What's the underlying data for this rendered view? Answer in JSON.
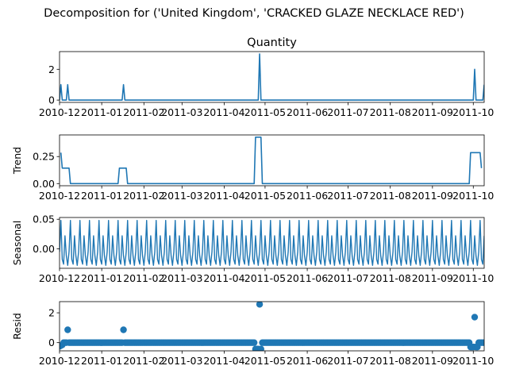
{
  "figure": {
    "suptitle": "Decomposition for ('United Kingdom', 'CRACKED GLAZE NECKLACE RED')"
  },
  "colors": {
    "series": "#1f77b4",
    "axis": "#000000",
    "background": "#ffffff"
  },
  "chart_data": [
    {
      "type": "line",
      "title": "Quantity",
      "ylabel": "",
      "xlim": [
        "2010-12-01",
        "2011-10-09"
      ],
      "ylim": [
        -0.15,
        3.15
      ],
      "yticks": [
        "0",
        "2"
      ],
      "ytick_values": [
        0,
        2
      ],
      "xticks": [
        "2010-12",
        "2011-01",
        "2011-02",
        "2011-03",
        "2011-04",
        "2011-05",
        "2011-06",
        "2011-07",
        "2011-08",
        "2011-09",
        "2011-10"
      ],
      "grid": false,
      "series": [
        {
          "points": [
            [
              "2010-12-01",
              0
            ],
            [
              "2010-12-02",
              1
            ],
            [
              "2010-12-03",
              0
            ],
            [
              "2010-12-06",
              0
            ],
            [
              "2010-12-07",
              1
            ],
            [
              "2010-12-08",
              0
            ],
            [
              "2011-01-16",
              0
            ],
            [
              "2011-01-17",
              1
            ],
            [
              "2011-01-18",
              0
            ],
            [
              "2011-04-26",
              0
            ],
            [
              "2011-04-27",
              3
            ],
            [
              "2011-04-28",
              0
            ],
            [
              "2011-10-01",
              0
            ],
            [
              "2011-10-02",
              2
            ],
            [
              "2011-10-03",
              0
            ],
            [
              "2011-10-08",
              0
            ],
            [
              "2011-10-09",
              1
            ]
          ]
        }
      ]
    },
    {
      "type": "line",
      "title": "",
      "ylabel": "Trend",
      "xlim": [
        "2010-12-01",
        "2011-10-09"
      ],
      "ylim": [
        -0.02,
        0.45
      ],
      "yticks": [
        "0.00",
        "0.25"
      ],
      "ytick_values": [
        0,
        0.25
      ],
      "xticks": [
        "2010-12",
        "2011-01",
        "2011-02",
        "2011-03",
        "2011-04",
        "2011-05",
        "2011-06",
        "2011-07",
        "2011-08",
        "2011-09",
        "2011-10"
      ],
      "grid": false,
      "series": [
        {
          "points": [
            [
              "2010-12-02",
              0.286
            ],
            [
              "2010-12-03",
              0.143
            ],
            [
              "2010-12-08",
              0.143
            ],
            [
              "2010-12-09",
              0
            ],
            [
              "2011-01-13",
              0
            ],
            [
              "2011-01-14",
              0.143
            ],
            [
              "2011-01-19",
              0.143
            ],
            [
              "2011-01-20",
              0
            ],
            [
              "2011-04-23",
              0
            ],
            [
              "2011-04-24",
              0.429
            ],
            [
              "2011-04-28",
              0.429
            ],
            [
              "2011-04-29",
              0
            ],
            [
              "2011-09-28",
              0
            ],
            [
              "2011-09-29",
              0.286
            ],
            [
              "2011-10-06",
              0.286
            ],
            [
              "2011-10-07",
              0.143
            ]
          ]
        }
      ]
    },
    {
      "type": "line",
      "title": "",
      "ylabel": "Seasonal",
      "xlim": [
        "2010-12-01",
        "2011-10-09"
      ],
      "ylim": [
        -0.033,
        0.053
      ],
      "yticks": [
        "0.00",
        "0.05"
      ],
      "ytick_values": [
        0,
        0.05
      ],
      "xticks": [
        "2010-12",
        "2011-01",
        "2011-02",
        "2011-03",
        "2011-04",
        "2011-05",
        "2011-06",
        "2011-07",
        "2011-08",
        "2011-09",
        "2011-10"
      ],
      "grid": false,
      "period_days": 7,
      "pattern": [
        -0.005,
        0.048,
        -0.018,
        -0.026,
        0.022,
        -0.012,
        -0.028
      ]
    },
    {
      "type": "scatter",
      "title": "",
      "ylabel": "Resid",
      "xlim": [
        "2010-12-01",
        "2011-10-09"
      ],
      "ylim": [
        -0.55,
        2.75
      ],
      "yticks": [
        "0",
        "2"
      ],
      "ytick_values": [
        0,
        2
      ],
      "xticks": [
        "2010-12",
        "2011-01",
        "2011-02",
        "2011-03",
        "2011-04",
        "2011-05",
        "2011-06",
        "2011-07",
        "2011-08",
        "2011-09",
        "2011-10"
      ],
      "grid": false,
      "baseline": 0,
      "outliers": [
        [
          "2010-12-07",
          0.86
        ],
        [
          "2011-01-17",
          0.86
        ],
        [
          "2011-04-27",
          2.57
        ],
        [
          "2011-10-02",
          1.71
        ]
      ],
      "dips": [
        [
          "2010-12-01",
          -0.25
        ],
        [
          "2010-12-02",
          -0.2
        ],
        [
          "2010-12-03",
          -0.15
        ],
        [
          "2011-04-24",
          -0.43
        ],
        [
          "2011-04-25",
          -0.43
        ],
        [
          "2011-04-26",
          -0.43
        ],
        [
          "2011-04-28",
          -0.43
        ],
        [
          "2011-09-29",
          -0.29
        ],
        [
          "2011-09-30",
          -0.29
        ],
        [
          "2011-10-01",
          -0.29
        ],
        [
          "2011-10-03",
          -0.29
        ],
        [
          "2011-10-04",
          -0.29
        ]
      ]
    }
  ]
}
